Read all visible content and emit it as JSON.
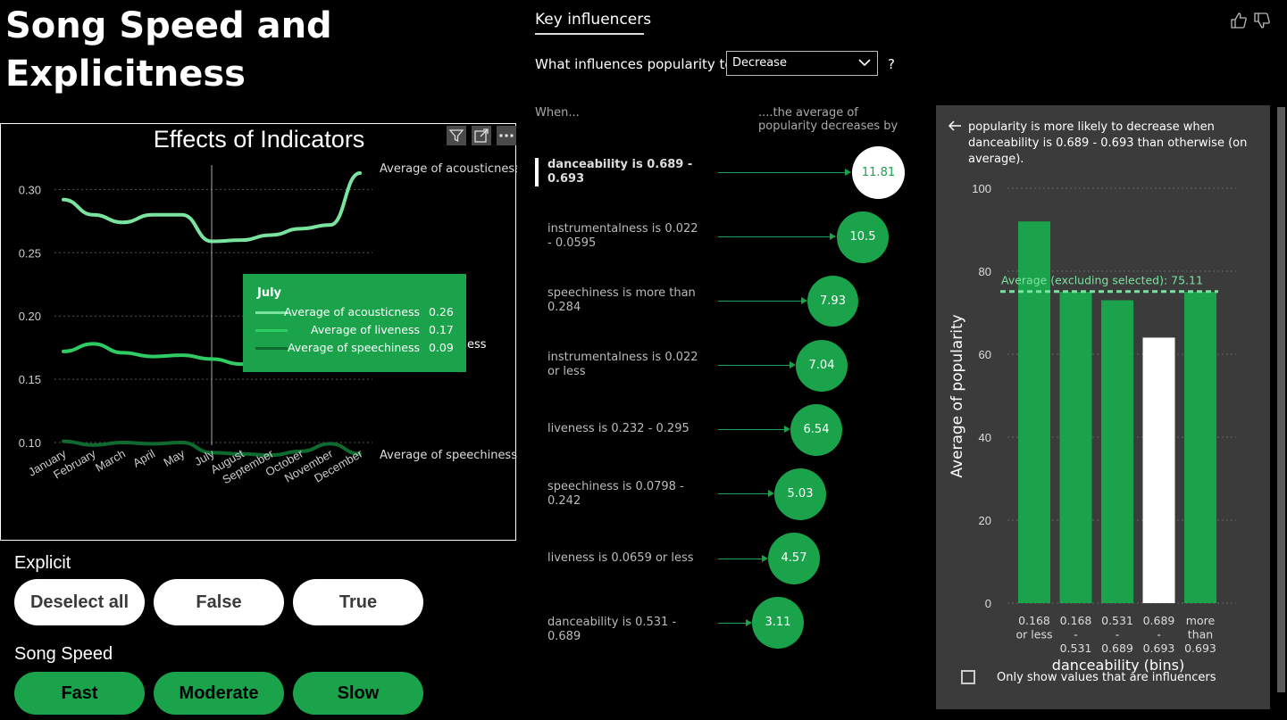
{
  "page": {
    "title": "Song Speed and Explicitness"
  },
  "line_chart": {
    "title": "Effects of Indicators",
    "toolbar": [
      "filter-icon",
      "focus-mode-icon",
      "more-options-icon"
    ],
    "series_labels": [
      "Average of acousticness",
      "Average of liveness",
      "Average of speechiness"
    ],
    "visible_liveness_fragment": "ess",
    "tooltip": {
      "title": "July",
      "rows": [
        {
          "name": "Average of acousticness",
          "value": "0.26",
          "color": "#7be3a0"
        },
        {
          "name": "Average of liveness",
          "value": "0.17",
          "color": "#2ecc62"
        },
        {
          "name": "Average of speechiness",
          "value": "0.09",
          "color": "#0e6b30"
        }
      ]
    }
  },
  "chart_data": [
    {
      "type": "line",
      "title": "Effects of Indicators",
      "x": [
        "January",
        "February",
        "March",
        "April",
        "May",
        "July",
        "August",
        "September",
        "October",
        "November",
        "December"
      ],
      "series": [
        {
          "name": "Average of acousticness",
          "color": "#7be3a0",
          "values": [
            0.292,
            0.28,
            0.274,
            0.28,
            0.28,
            0.259,
            0.26,
            0.264,
            0.269,
            0.272,
            0.313
          ]
        },
        {
          "name": "Average of liveness",
          "color": "#2ecc62",
          "values": [
            0.172,
            0.178,
            0.171,
            0.168,
            0.169,
            0.166,
            0.162,
            0.17,
            0.165,
            0.167,
            0.158
          ]
        },
        {
          "name": "Average of speechiness",
          "color": "#0e6b30",
          "values": [
            0.101,
            0.098,
            0.1,
            0.099,
            0.1,
            0.092,
            0.091,
            0.09,
            0.093,
            0.099,
            0.091
          ]
        }
      ],
      "yticks": [
        "0.10",
        "0.15",
        "0.20",
        "0.25",
        "0.30"
      ],
      "ylim": [
        0.083,
        0.335
      ],
      "hover_category": "July",
      "grid": true
    },
    {
      "type": "bar",
      "title": "",
      "xlabel": "danceability (bins)",
      "ylabel": "Average of popularity",
      "categories": [
        [
          "0.168",
          "or less"
        ],
        [
          "0.168",
          "-",
          "0.531"
        ],
        [
          "0.531",
          "-",
          "0.689"
        ],
        [
          "0.689",
          "-",
          "0.693"
        ],
        [
          "more",
          "than",
          "0.693"
        ]
      ],
      "values": [
        92,
        75,
        73,
        64,
        75
      ],
      "selected_index": 3,
      "colors": {
        "bar": "#1aa34a",
        "selected": "#ffffff",
        "reference": "#7be3a0"
      },
      "reference_line": {
        "label": "Average (excluding selected): 75.11",
        "value": 75.11
      },
      "yticks": [
        0,
        20,
        40,
        60,
        80,
        100
      ],
      "ylim": [
        0,
        100
      ],
      "grid": true
    }
  ],
  "slicers": {
    "explicit": {
      "title": "Explicit",
      "options": [
        "Deselect all",
        "False",
        "True"
      ]
    },
    "speed": {
      "title": "Song Speed",
      "options": [
        "Fast",
        "Moderate",
        "Slow"
      ]
    }
  },
  "key_influencers": {
    "tab": "Key influencers",
    "question": "What influences popularity to",
    "dropdown_value": "Decrease",
    "help": "?",
    "when_header": "When...",
    "avg_header": "....the average of popularity decreases by",
    "influencers": [
      {
        "label": "danceability is 0.689 - 0.693",
        "value": "11.81",
        "selected": true
      },
      {
        "label": "instrumentalness is 0.022 - 0.0595",
        "value": "10.5"
      },
      {
        "label": "speechiness is more than 0.284",
        "value": "7.93"
      },
      {
        "label": "instrumentalness is 0.022 or less",
        "value": "7.04"
      },
      {
        "label": "liveness is 0.232 - 0.295",
        "value": "6.54"
      },
      {
        "label": "speechiness is 0.0798 - 0.242",
        "value": "5.03"
      },
      {
        "label": "liveness is 0.0659 or less",
        "value": "4.57"
      },
      {
        "label": "danceability is 0.531 - 0.689",
        "value": "3.11"
      }
    ],
    "icons": [
      "thumbs-up-icon",
      "thumbs-down-icon"
    ]
  },
  "detail_panel": {
    "back_icon": "back-arrow-icon",
    "description": "popularity is more likely to decrease when danceability is 0.689 - 0.693 than otherwise (on average).",
    "checkbox_label": "Only show values that are influencers"
  }
}
